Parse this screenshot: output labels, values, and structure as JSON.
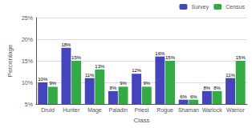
{
  "chart_data": {
    "type": "bar",
    "xlabel": "Class",
    "ylabel": "Percentage",
    "categories": [
      "Druid",
      "Hunter",
      "Mage",
      "Paladin",
      "Priest",
      "Rogue",
      "Shaman",
      "Warlock",
      "Warrior"
    ],
    "series": [
      {
        "name": "Survey",
        "color": "#4444bb",
        "values": [
          10,
          18,
          11,
          8,
          12,
          16,
          6,
          8,
          11
        ],
        "value_labels": [
          "10%",
          "18%",
          "11%",
          "8%",
          "12%",
          "16%",
          "6%",
          "8%",
          "11%"
        ]
      },
      {
        "name": "Census",
        "color": "#33aa44",
        "values": [
          9,
          15,
          13,
          9,
          9,
          15,
          6,
          8,
          15
        ],
        "value_labels": [
          "9%",
          "15%",
          "13%",
          "9%",
          "9%",
          "15%",
          "6%",
          "8%",
          "15%"
        ]
      }
    ],
    "ylim": [
      5,
      25
    ],
    "yticks": [
      {
        "value": 5,
        "label": "5%"
      },
      {
        "value": 10,
        "label": "10%"
      },
      {
        "value": 15,
        "label": "15%"
      },
      {
        "value": 20,
        "label": "20%"
      },
      {
        "value": 25,
        "label": "25%"
      }
    ],
    "grid": true,
    "legend": "upper right",
    "data_labels": true
  }
}
